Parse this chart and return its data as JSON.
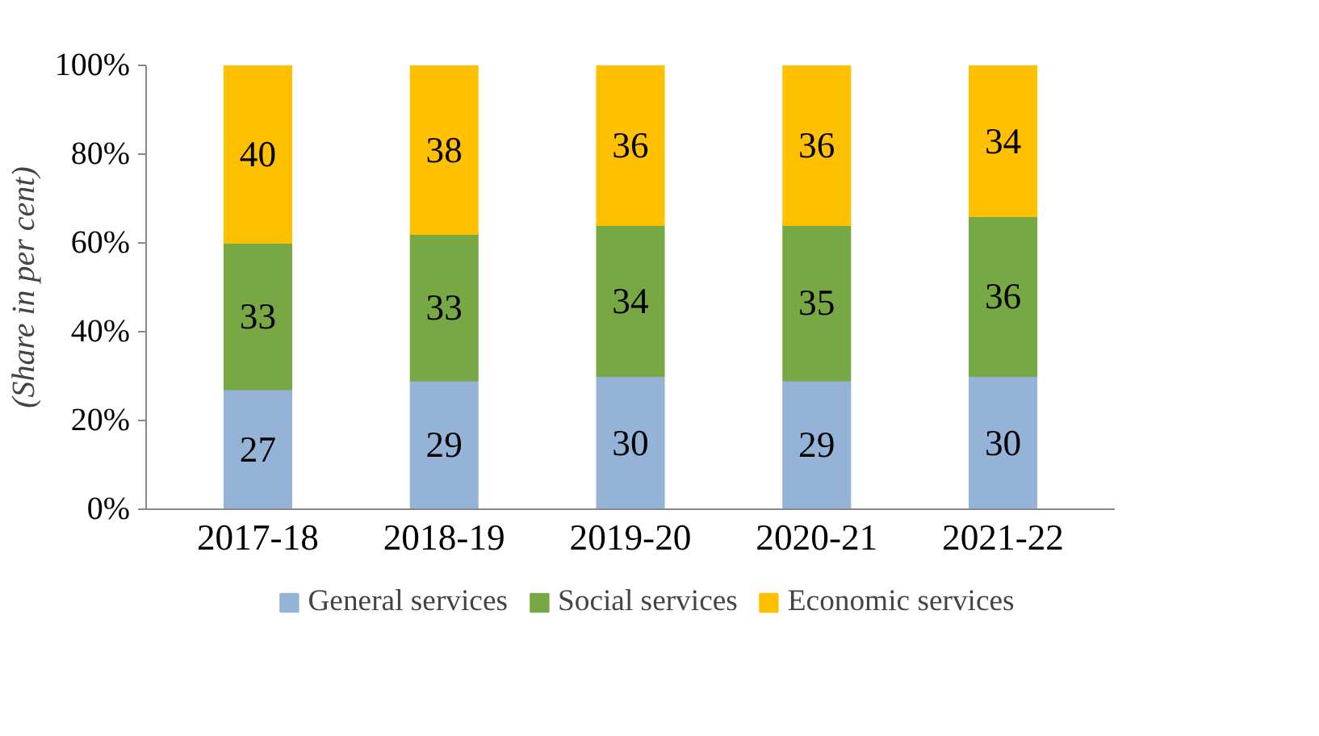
{
  "chart_data": {
    "type": "bar",
    "stacked": true,
    "ylabel": "(Share in per cent)",
    "categories": [
      "2017-18",
      "2018-19",
      "2019-20",
      "2020-21",
      "2021-22"
    ],
    "series": [
      {
        "name": "General services",
        "color": "#95b3d7",
        "values": [
          27,
          29,
          30,
          29,
          30
        ]
      },
      {
        "name": "Social services",
        "color": "#77a843",
        "values": [
          33,
          33,
          34,
          35,
          36
        ]
      },
      {
        "name": "Economic services",
        "color": "#ffc000",
        "values": [
          40,
          38,
          36,
          36,
          34
        ]
      }
    ],
    "ylim": [
      0,
      100
    ],
    "yticks": [
      {
        "value": 0,
        "label": "0%"
      },
      {
        "value": 20,
        "label": "20%"
      },
      {
        "value": 40,
        "label": "40%"
      },
      {
        "value": 60,
        "label": "60%"
      },
      {
        "value": 80,
        "label": "80%"
      },
      {
        "value": 100,
        "label": "100%"
      }
    ],
    "data_labels": true,
    "grid": false,
    "legend": "bottom"
  }
}
